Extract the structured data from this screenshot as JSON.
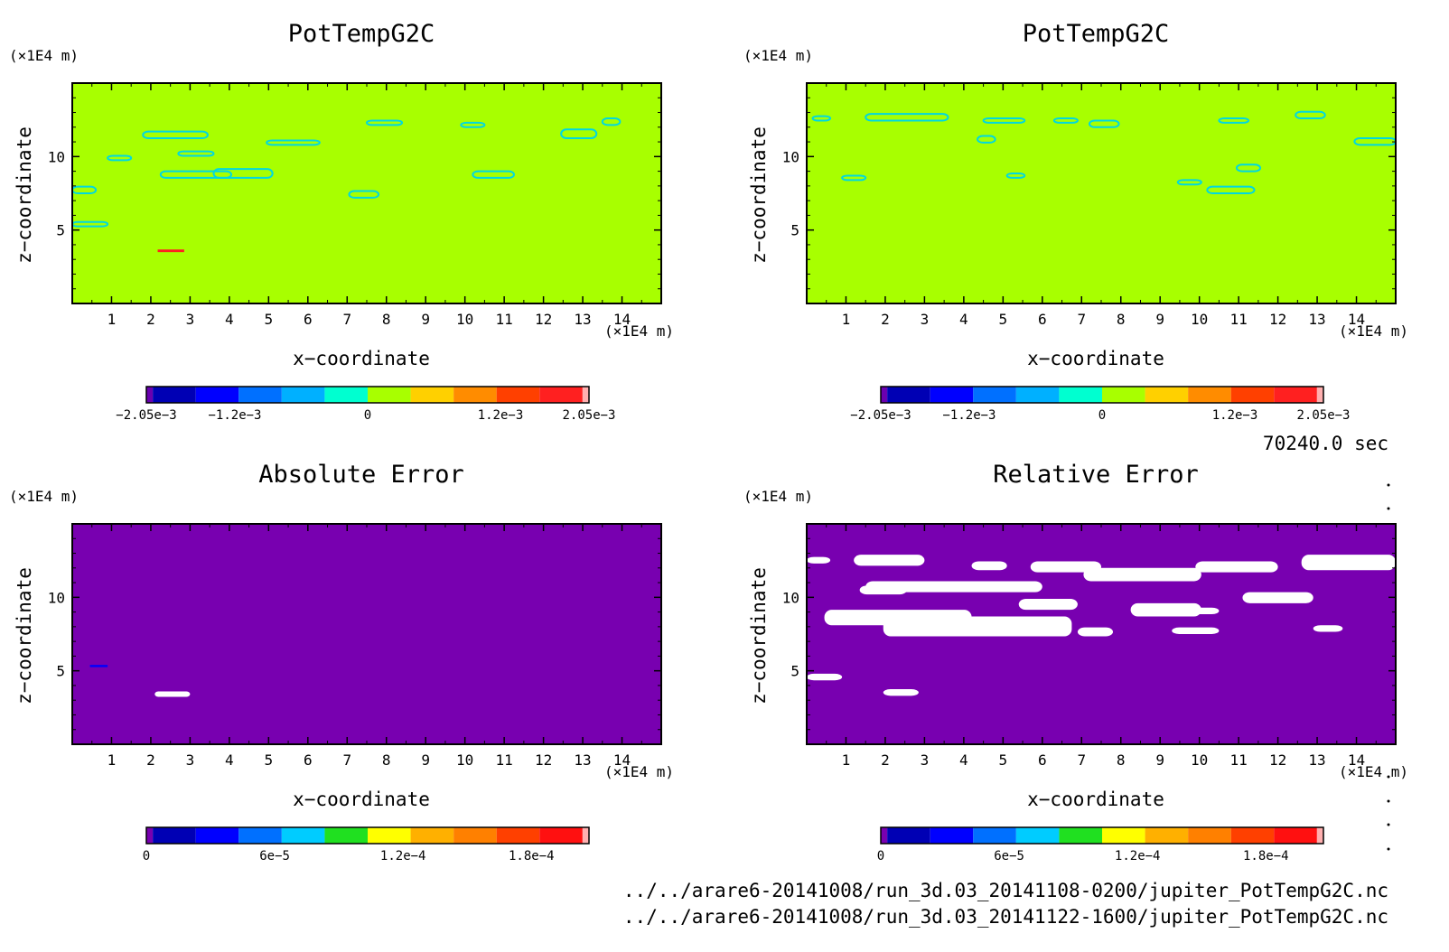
{
  "chart_data": [
    {
      "type": "heatmap",
      "title": "PotTempG2C",
      "xlabel": "x−coordinate",
      "ylabel": "z−coordinate",
      "x_unit": "(×1E4 m)",
      "y_unit": "(×1E4 m)",
      "xlim": [
        0,
        15
      ],
      "ylim": [
        0,
        15
      ],
      "x_ticks": [
        "1",
        "2",
        "3",
        "4",
        "5",
        "6",
        "7",
        "8",
        "9",
        "10",
        "11",
        "12",
        "13",
        "14"
      ],
      "y_ticks": [
        "5",
        "10"
      ],
      "background": "#a8ff00",
      "colorbar": {
        "colors": [
          "#6a00b0",
          "#0000b4",
          "#0000ff",
          "#0070ff",
          "#00b0ff",
          "#00ffd0",
          "#a8ff00",
          "#ffd000",
          "#ff8c00",
          "#ff4000",
          "#ff2020",
          "#ffb0b0"
        ],
        "tick_labels": [
          "−2.05e−3",
          "−1.2e−3",
          "0",
          "1.2e−3",
          "2.05e−3"
        ]
      }
    },
    {
      "type": "heatmap",
      "title": "PotTempG2C",
      "xlabel": "x−coordinate",
      "ylabel": "z−coordinate",
      "x_unit": "(×1E4 m)",
      "y_unit": "(×1E4 m)",
      "xlim": [
        0,
        15
      ],
      "ylim": [
        0,
        15
      ],
      "x_ticks": [
        "1",
        "2",
        "3",
        "4",
        "5",
        "6",
        "7",
        "8",
        "9",
        "10",
        "11",
        "12",
        "13",
        "14"
      ],
      "y_ticks": [
        "5",
        "10"
      ],
      "background": "#a8ff00",
      "colorbar": {
        "colors": [
          "#6a00b0",
          "#0000b4",
          "#0000ff",
          "#0070ff",
          "#00b0ff",
          "#00ffd0",
          "#a8ff00",
          "#ffd000",
          "#ff8c00",
          "#ff4000",
          "#ff2020",
          "#ffb0b0"
        ],
        "tick_labels": [
          "−2.05e−3",
          "−1.2e−3",
          "0",
          "1.2e−3",
          "2.05e−3"
        ]
      }
    },
    {
      "type": "heatmap",
      "title": "Absolute Error",
      "xlabel": "x−coordinate",
      "ylabel": "z−coordinate",
      "x_unit": "(×1E4 m)",
      "y_unit": "(×1E4 m)",
      "xlim": [
        0,
        15
      ],
      "ylim": [
        0,
        15
      ],
      "x_ticks": [
        "1",
        "2",
        "3",
        "4",
        "5",
        "6",
        "7",
        "8",
        "9",
        "10",
        "11",
        "12",
        "13",
        "14"
      ],
      "y_ticks": [
        "5",
        "10"
      ],
      "background": "#7800b0",
      "colorbar": {
        "colors": [
          "#7800b0",
          "#0000b4",
          "#0000ff",
          "#0070ff",
          "#00ccff",
          "#20e020",
          "#ffff00",
          "#ffb000",
          "#ff8000",
          "#ff4000",
          "#ff1010",
          "#ffb0b0"
        ],
        "tick_labels": [
          "0",
          "6e−5",
          "1.2e−4",
          "1.8e−4"
        ]
      }
    },
    {
      "type": "heatmap",
      "title": "Relative Error",
      "xlabel": "x−coordinate",
      "ylabel": "z−coordinate",
      "x_unit": "(×1E4 m)",
      "y_unit": "(×1E4 m)",
      "xlim": [
        0,
        15
      ],
      "ylim": [
        0,
        15
      ],
      "x_ticks": [
        "1",
        "2",
        "3",
        "4",
        "5",
        "6",
        "7",
        "8",
        "9",
        "10",
        "11",
        "12",
        "13",
        "14"
      ],
      "y_ticks": [
        "5",
        "10"
      ],
      "background": "#7800b0",
      "colorbar": {
        "colors": [
          "#7800b0",
          "#0000b4",
          "#0000ff",
          "#0070ff",
          "#00ccff",
          "#20e020",
          "#ffff00",
          "#ffb000",
          "#ff8000",
          "#ff4000",
          "#ff1010",
          "#ffb0b0"
        ],
        "tick_labels": [
          "0",
          "6e−5",
          "1.2e−4",
          "1.8e−4"
        ]
      }
    }
  ],
  "time_label": "70240.0 sec",
  "file_paths": [
    "../../arare6-20141008/run_3d.03_20141108-0200/jupiter_PotTempG2C.nc",
    "../../arare6-20141008/run_3d.03_20141122-1600/jupiter_PotTempG2C.nc"
  ]
}
